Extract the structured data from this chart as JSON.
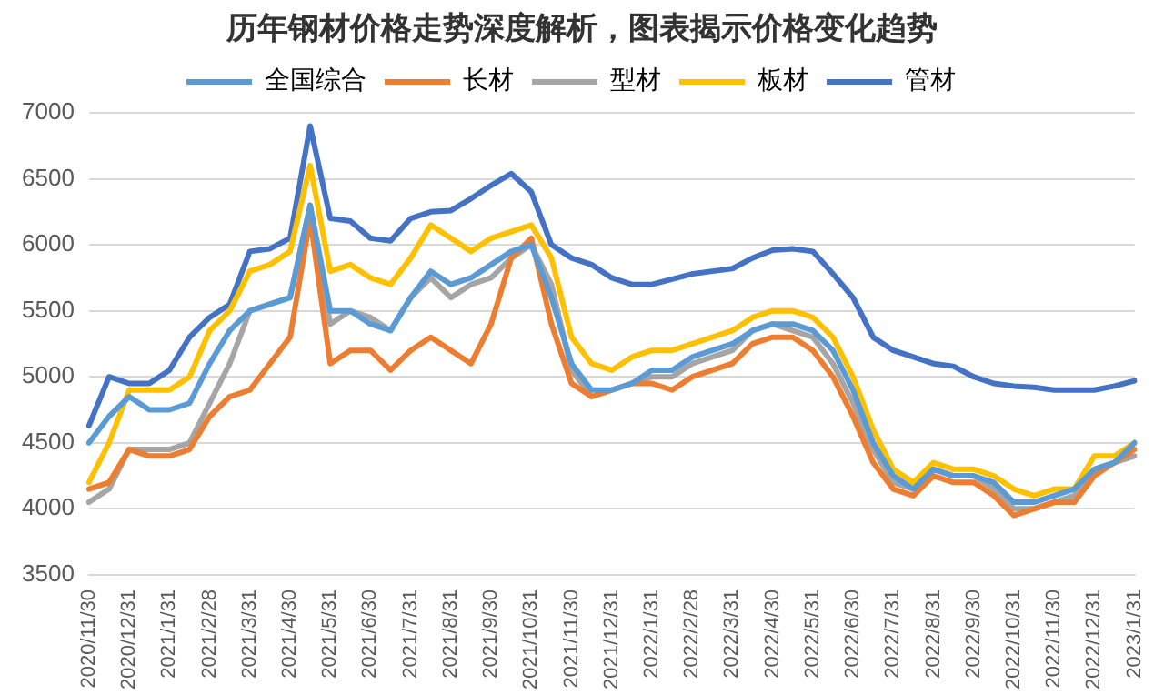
{
  "chart_data": {
    "type": "line",
    "title": "历年钢材价格走势深度解析，图表揭示价格变化趋势",
    "categories": [
      "2020/11/30",
      null,
      "2020/12/31",
      null,
      "2021/1/31",
      null,
      "2021/2/28",
      null,
      "2021/3/31",
      null,
      "2021/4/30",
      null,
      "2021/5/31",
      null,
      "2021/6/30",
      null,
      "2021/7/31",
      null,
      "2021/8/31",
      null,
      "2021/9/30",
      null,
      "2021/10/31",
      null,
      "2021/11/30",
      null,
      "2021/12/31",
      null,
      "2022/1/31",
      null,
      "2022/2/28",
      null,
      "2022/3/31",
      null,
      "2022/4/30",
      null,
      "2022/5/31",
      null,
      "2022/6/30",
      null,
      "2022/7/31",
      null,
      "2022/8/31",
      null,
      "2022/9/30",
      null,
      "2022/10/31",
      null,
      "2022/11/30",
      null,
      "2022/12/31",
      null,
      "2023/1/31"
    ],
    "series": [
      {
        "name": "全国综合",
        "color": "#5b9bd5",
        "values": [
          4500,
          4700,
          4850,
          4750,
          4750,
          4800,
          5100,
          5350,
          5500,
          5550,
          5600,
          6300,
          5500,
          5500,
          5400,
          5350,
          5600,
          5800,
          5700,
          5750,
          5850,
          5950,
          6000,
          5600,
          5100,
          4900,
          4900,
          4950,
          5050,
          5050,
          5150,
          5200,
          5250,
          5350,
          5400,
          5400,
          5350,
          5200,
          4900,
          4500,
          4250,
          4150,
          4300,
          4250,
          4250,
          4200,
          4050,
          4050,
          4100,
          4150,
          4300,
          4350,
          4500
        ]
      },
      {
        "name": "长材",
        "color": "#ed7d31",
        "values": [
          4150,
          4200,
          4450,
          4400,
          4400,
          4450,
          4700,
          4850,
          4900,
          5100,
          5300,
          6200,
          5100,
          5200,
          5200,
          5050,
          5200,
          5300,
          5200,
          5100,
          5400,
          5900,
          6050,
          5400,
          4950,
          4850,
          4900,
          4950,
          4950,
          4900,
          5000,
          5050,
          5100,
          5250,
          5300,
          5300,
          5200,
          5000,
          4700,
          4350,
          4150,
          4100,
          4250,
          4200,
          4200,
          4100,
          3950,
          4000,
          4050,
          4050,
          4250,
          4350,
          4450
        ]
      },
      {
        "name": "型材",
        "color": "#a5a5a5",
        "values": [
          4050,
          4150,
          4450,
          4450,
          4450,
          4500,
          4800,
          5100,
          5500,
          5550,
          5600,
          6300,
          5400,
          5500,
          5450,
          5350,
          5600,
          5750,
          5600,
          5700,
          5750,
          5900,
          6000,
          5700,
          5050,
          4850,
          4900,
          4950,
          5000,
          5000,
          5100,
          5150,
          5200,
          5350,
          5400,
          5350,
          5300,
          5100,
          4800,
          4450,
          4200,
          4150,
          4300,
          4250,
          4250,
          4150,
          4000,
          4000,
          4050,
          4100,
          4300,
          4350,
          4400
        ]
      },
      {
        "name": "板材",
        "color": "#ffc000",
        "values": [
          4200,
          4500,
          4900,
          4900,
          4900,
          5000,
          5350,
          5500,
          5800,
          5850,
          5950,
          6600,
          5800,
          5850,
          5750,
          5700,
          5900,
          6150,
          6050,
          5950,
          6050,
          6100,
          6150,
          5900,
          5300,
          5100,
          5050,
          5150,
          5200,
          5200,
          5250,
          5300,
          5350,
          5450,
          5500,
          5500,
          5450,
          5300,
          5000,
          4600,
          4300,
          4200,
          4350,
          4300,
          4300,
          4250,
          4150,
          4100,
          4150,
          4150,
          4400,
          4400,
          4500
        ]
      },
      {
        "name": "管材",
        "color": "#4472c4",
        "values": [
          4630,
          5000,
          4950,
          4950,
          5050,
          5300,
          5450,
          5550,
          5950,
          5970,
          6050,
          6900,
          6200,
          6180,
          6050,
          6030,
          6200,
          6250,
          6260,
          6350,
          6450,
          6540,
          6400,
          6000,
          5900,
          5850,
          5750,
          5700,
          5700,
          5740,
          5780,
          5800,
          5820,
          5900,
          5960,
          5970,
          5950,
          5780,
          5600,
          5300,
          5200,
          5150,
          5100,
          5080,
          5000,
          4950,
          4930,
          4920,
          4900,
          4900,
          4900,
          4930,
          4970
        ]
      }
    ],
    "ylim": [
      3500,
      7000
    ],
    "yticks": [
      3500,
      4000,
      4500,
      5000,
      5500,
      6000,
      6500,
      7000
    ],
    "grid": "y",
    "legend": "top",
    "marker": "none",
    "line_style": "solid"
  }
}
